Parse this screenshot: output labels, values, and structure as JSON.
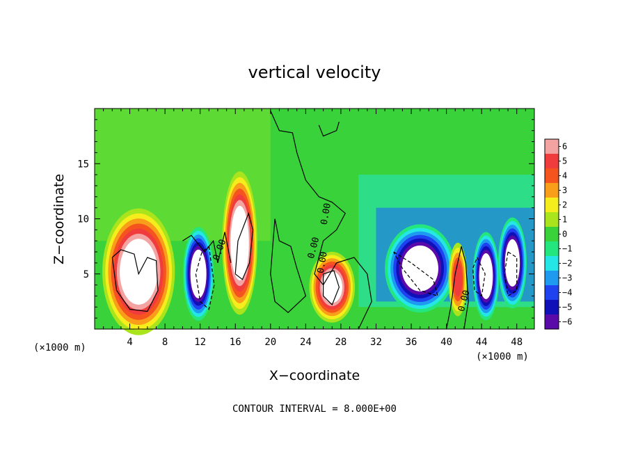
{
  "chart_data": {
    "type": "heatmap",
    "title": "vertical velocity",
    "xlabel": "X−coordinate",
    "ylabel": "Z−coordinate",
    "x_unit_left": "(×1000 m)",
    "x_unit_right": "(×1000 m)",
    "xlim": [
      0,
      50
    ],
    "ylim": [
      0,
      20
    ],
    "xticks": [
      4,
      8,
      12,
      16,
      20,
      24,
      28,
      32,
      36,
      40,
      44,
      48
    ],
    "yticks": [
      5,
      10,
      15
    ],
    "colorbar": {
      "min": -6,
      "max": 6,
      "labels": [
        "6",
        "5",
        "4",
        "3",
        "2",
        "1",
        "0",
        "−1",
        "−2",
        "−3",
        "−4",
        "−5",
        "−6"
      ],
      "colors": [
        "#f4a3a3",
        "#f03c3c",
        "#f6541e",
        "#f99e1a",
        "#f6ee1c",
        "#a9e41c",
        "#3ad23a",
        "#24e67f",
        "#24e6e6",
        "#1e9af0",
        "#1e42f0",
        "#1010b8",
        "#5a0aa8"
      ]
    },
    "contour_interval_text": "CONTOUR INTERVAL = 8.000E+00",
    "contour_labels": [
      "0.00",
      "0.00",
      "0.00",
      "0.00",
      "0.00"
    ],
    "features": [
      {
        "kind": "updraft",
        "x": 5.0,
        "z": 5.2,
        "w": 8
      },
      {
        "kind": "downdraft",
        "x": 11.8,
        "z": 5.0,
        "w": -8
      },
      {
        "kind": "updraft",
        "x": 16.5,
        "z": 7.8,
        "w": 8
      },
      {
        "kind": "updraft",
        "x": 27.0,
        "z": 3.8,
        "w": 7
      },
      {
        "kind": "downdraft",
        "x": 37.0,
        "z": 5.5,
        "w": -8
      },
      {
        "kind": "updraft",
        "x": 41.3,
        "z": 4.5,
        "w": 5
      },
      {
        "kind": "downdraft",
        "x": 44.5,
        "z": 4.8,
        "w": -8
      },
      {
        "kind": "downdraft",
        "x": 47.5,
        "z": 6.0,
        "w": -8
      }
    ]
  }
}
